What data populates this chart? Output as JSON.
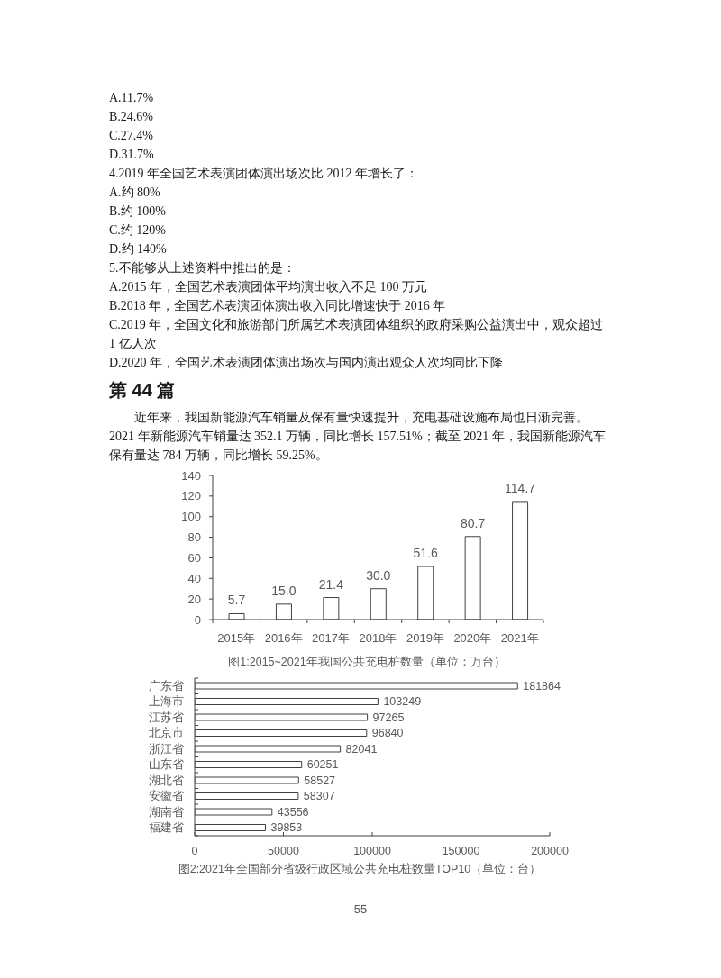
{
  "chart_data": [
    {
      "type": "other",
      "annotations": [
        "A.11.7%",
        "B.24.6%",
        "C.27.4%",
        "D.31.7%",
        "4.2019 年全国艺术表演团体演出场次比 2012 年增长了：",
        "A.约 80%",
        "B.约 100%",
        "C.约 120%",
        "D.约 140%",
        "5.不能够从上述资料中推出的是：",
        "A.2015 年，全国艺术表演团体平均演出收入不足 100 万元",
        "B.2018 年，全国艺术表演团体演出收入同比增速快于 2016 年",
        "C.2019 年，全国文化和旅游部门所属艺术表演团体组织的政府采购公益演出中，观众超过",
        "1 亿人次",
        "D.2020 年，全国艺术表演团体演出场次与国内演出观众人次均同比下降"
      ]
    },
    {
      "type": "other",
      "title": "第 44 篇",
      "annotations": [
        "近年来，我国新能源汽车销量及保有量快速提升，充电基础设施布局也日渐完善。",
        "2021 年新能源汽车销量达 352.1 万辆，同比增长 157.51%；截至 2021 年，我国新能源汽车",
        "保有量达 784 万辆，同比增长 59.25%。"
      ]
    },
    {
      "type": "bar",
      "title": "图1:2015~2021年我国公共充电桩数量（单位：万台）",
      "categories": [
        "2015年",
        "2016年",
        "2017年",
        "2018年",
        "2019年",
        "2020年",
        "2021年"
      ],
      "values": [
        5.7,
        15.0,
        21.4,
        30.0,
        51.6,
        80.7,
        114.7
      ],
      "value_labels": [
        "5.7",
        "15.0",
        "21.4",
        "30.0",
        "51.6",
        "80.7",
        "114.7"
      ],
      "color": "#ffffff",
      "ylim": [
        0,
        140
      ],
      "yticks": [
        0,
        20,
        40,
        60,
        80,
        100,
        120,
        140
      ]
    },
    {
      "type": "bar",
      "orientation": "horizontal",
      "title": "图2:2021年全国部分省级行政区域公共充电桩数量TOP10（单位：台）",
      "categories": [
        "广东省",
        "上海市",
        "江苏省",
        "北京市",
        "浙江省",
        "山东省",
        "湖北省",
        "安徽省",
        "湖南省",
        "福建省"
      ],
      "values": [
        181864,
        103249,
        97265,
        96840,
        82041,
        60251,
        58527,
        58307,
        43556,
        39853
      ],
      "data_labels": true,
      "color": "#ffffff",
      "xlim": [
        0,
        200000
      ],
      "xticks": [
        0,
        50000,
        100000,
        150000,
        200000
      ],
      "annotations": [
        "55"
      ]
    }
  ]
}
